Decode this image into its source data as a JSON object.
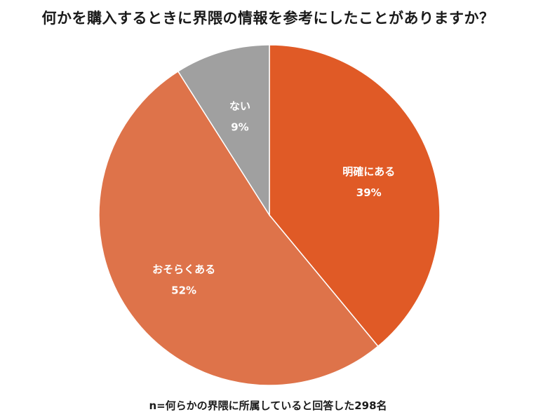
{
  "chart_data": {
    "type": "pie",
    "title": "何かを購入するときに界隈の情報を参考にしたことがありますか？",
    "note": "n=何らかの界隈に所属していると回答した298名",
    "start_angle_deg": 0,
    "direction": "clockwise",
    "slices": [
      {
        "label": "明確にある",
        "value": 39,
        "value_label": "39%",
        "color": "#E05A26"
      },
      {
        "label": "おそらくある",
        "value": 52,
        "value_label": "52%",
        "color": "#DE734A"
      },
      {
        "label": "ない",
        "value": 9,
        "value_label": "9%",
        "color": "#A0A0A0"
      }
    ],
    "slice_border_color": "#FFFFFF"
  }
}
